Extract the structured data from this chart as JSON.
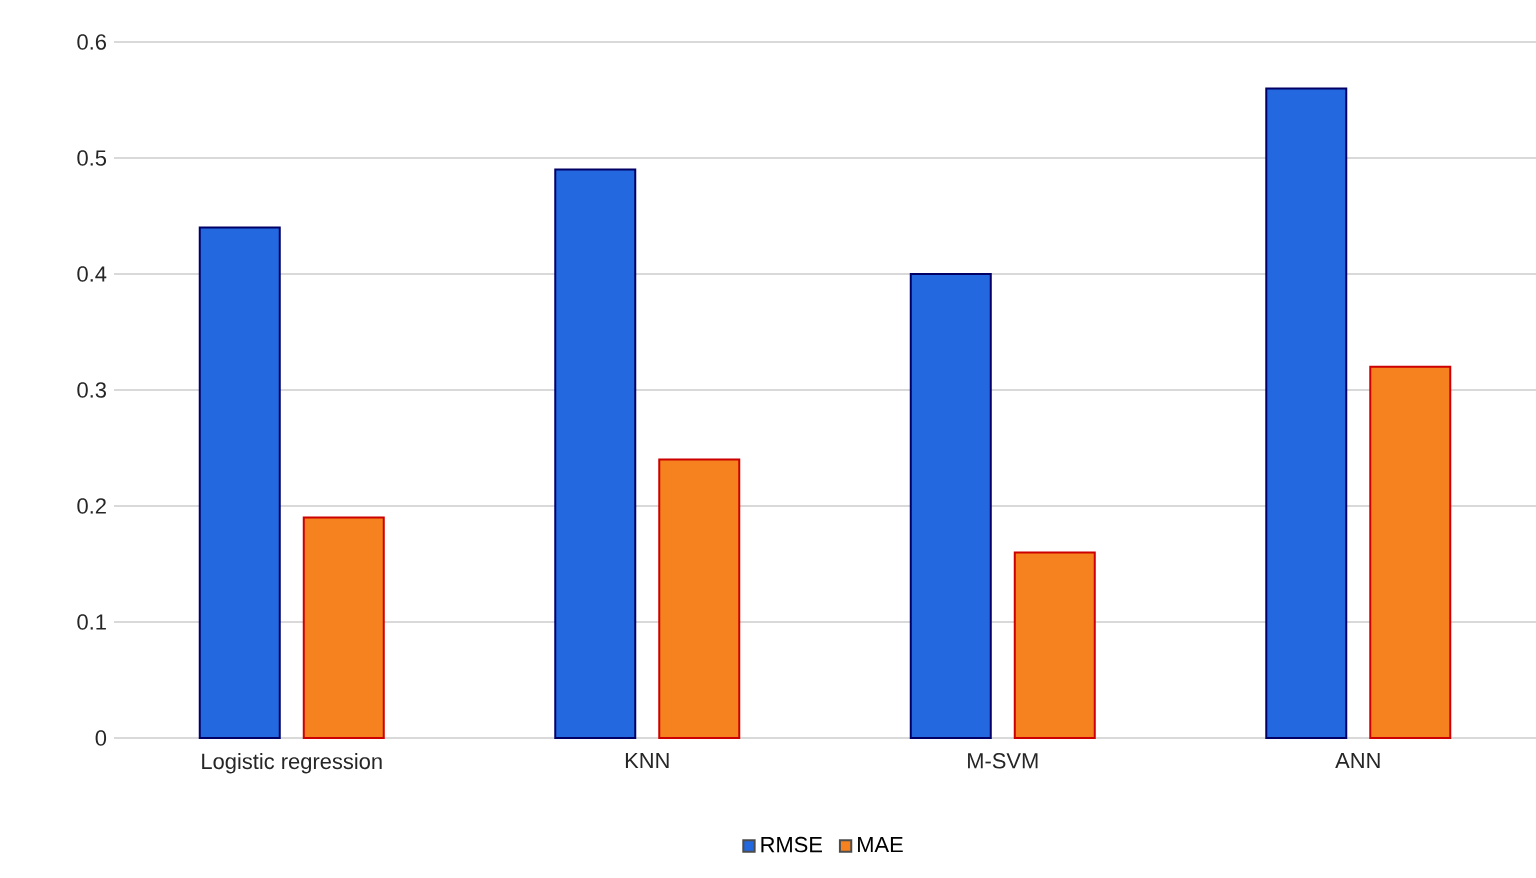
{
  "chart_data": {
    "type": "bar",
    "categories": [
      "Logistic regression",
      "KNN",
      "M-SVM",
      "ANN"
    ],
    "series": [
      {
        "name": "RMSE",
        "color": "#2468e0",
        "values": [
          0.44,
          0.49,
          0.4,
          0.56
        ]
      },
      {
        "name": "MAE",
        "color": "#f5821f",
        "values": [
          0.19,
          0.24,
          0.16,
          0.32
        ]
      }
    ],
    "ylim": [
      0,
      0.6
    ],
    "yticks": [
      0,
      0.1,
      0.2,
      0.3,
      0.4,
      0.5,
      0.6
    ],
    "grid": "y",
    "legend": "bottom"
  }
}
